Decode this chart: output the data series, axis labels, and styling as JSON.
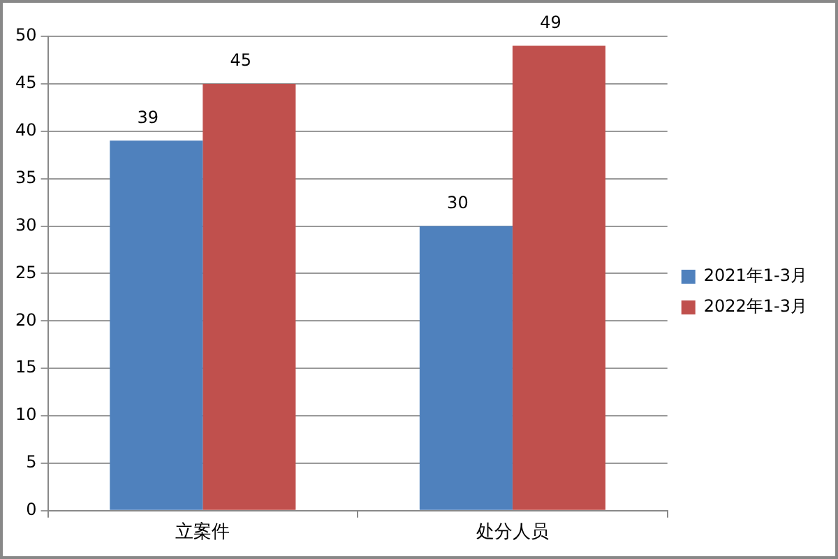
{
  "chart_data": {
    "type": "bar",
    "categories": [
      "立案件",
      "处分人员"
    ],
    "series": [
      {
        "name": "2021年1-3月",
        "color": "#4f81bd",
        "values": [
          39,
          30
        ]
      },
      {
        "name": "2022年1-3月",
        "color": "#c0504d",
        "values": [
          45,
          49
        ]
      }
    ],
    "ylim": [
      0,
      50
    ],
    "yticks": [
      0,
      5,
      10,
      15,
      20,
      25,
      30,
      35,
      40,
      45,
      50
    ],
    "grid": "y",
    "legend": "right",
    "data_labels": true
  }
}
